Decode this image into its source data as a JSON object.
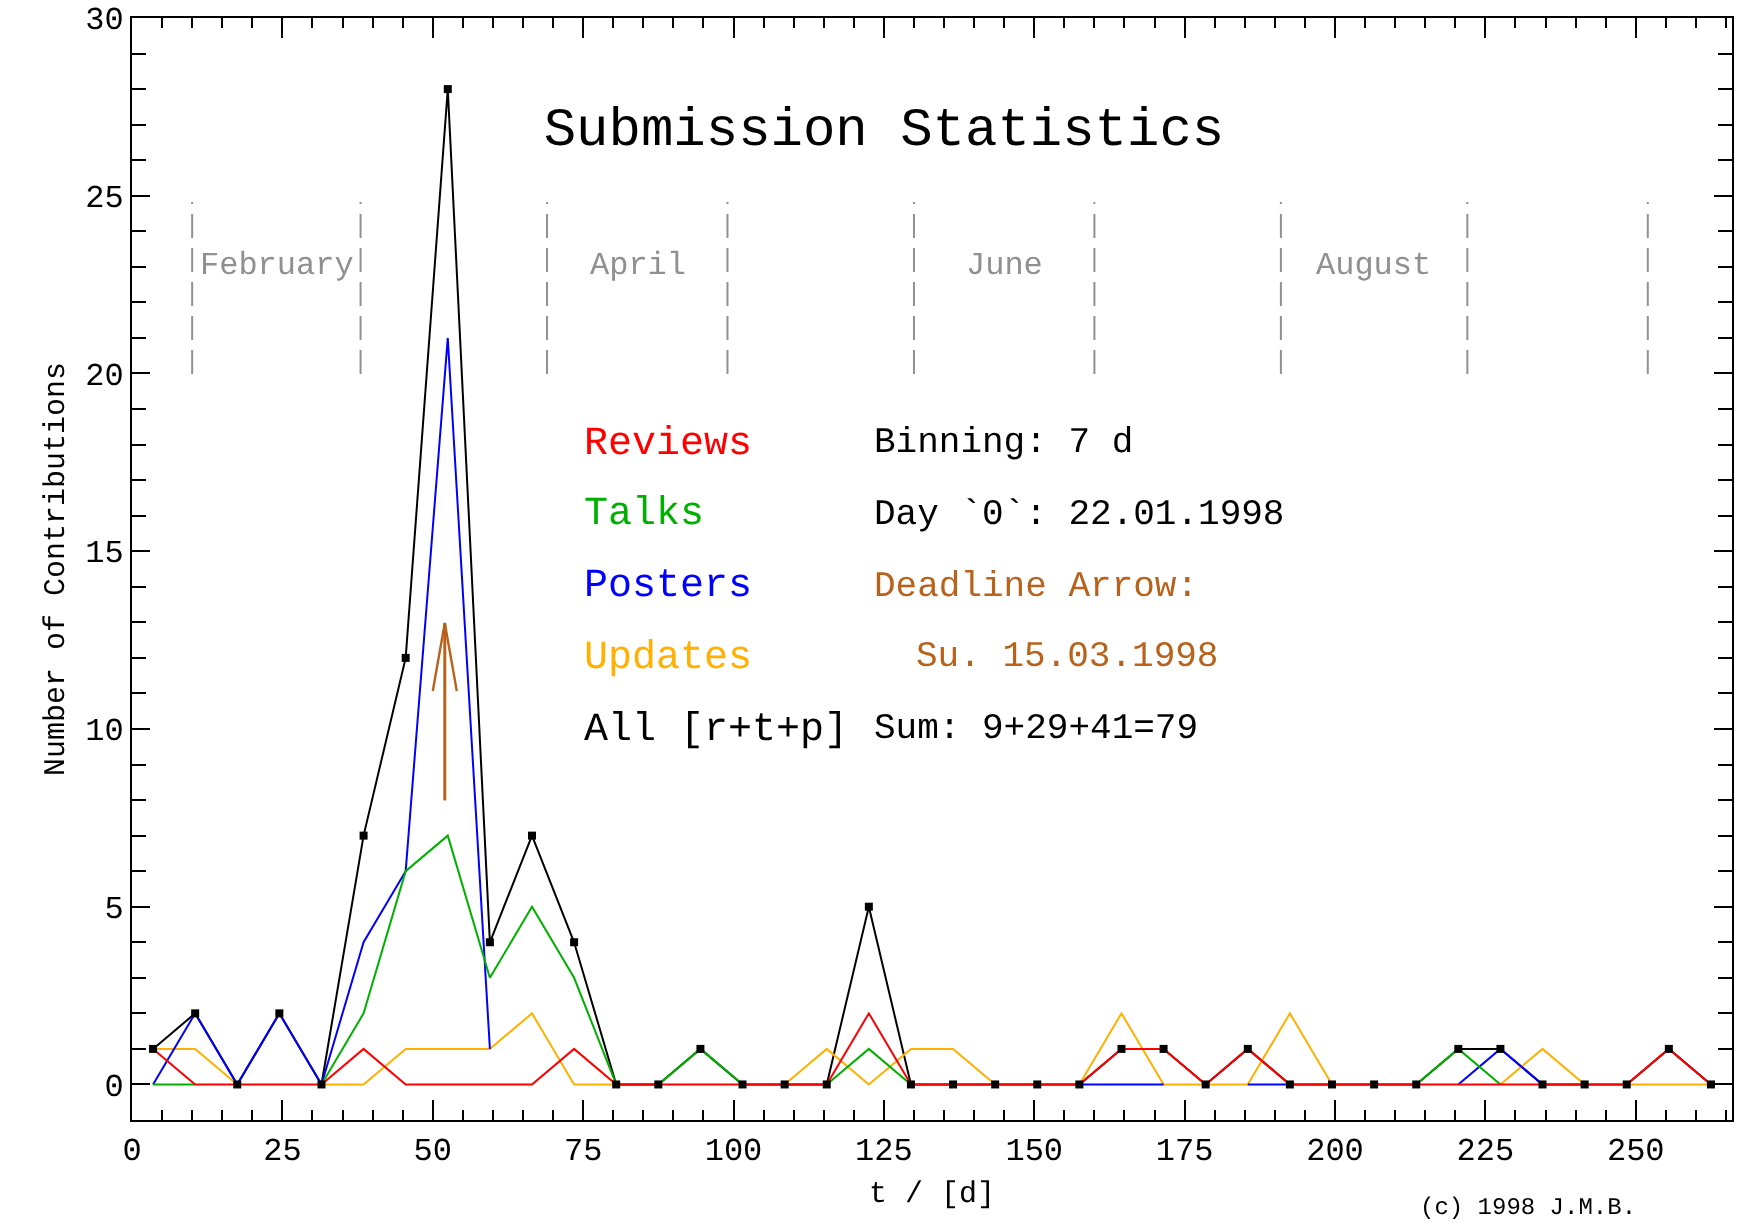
{
  "chart_data": {
    "type": "line",
    "title": "Submission Statistics",
    "xlabel": "t / [d]",
    "ylabel": "Number of Contributions",
    "x": [
      3.5,
      10.5,
      17.5,
      24.5,
      31.5,
      38.5,
      45.5,
      52.5,
      59.5,
      66.5,
      73.5,
      80.5,
      87.5,
      94.5,
      101.5,
      108.5,
      115.5,
      122.5,
      129.5,
      136.5,
      143.5,
      150.5,
      157.5,
      164.5,
      171.5,
      178.5,
      185.5,
      192.5,
      199.5,
      206.5,
      213.5,
      220.5,
      227.5,
      234.5,
      241.5,
      248.5,
      255.5,
      262.5
    ],
    "series": [
      {
        "name": "Reviews",
        "color": "#ff0000",
        "values": [
          1,
          0,
          0,
          0,
          0,
          1,
          0,
          0,
          0,
          0,
          1,
          0,
          0,
          0,
          0,
          0,
          0,
          2,
          0,
          0,
          0,
          0,
          0,
          1,
          1,
          0,
          1,
          0,
          0,
          0,
          0,
          0,
          0,
          0,
          0,
          0,
          1,
          0
        ]
      },
      {
        "name": "Talks",
        "color": "#00b000",
        "values": [
          0,
          0,
          null,
          null,
          0,
          2,
          6,
          7,
          3,
          5,
          3,
          0,
          0,
          1,
          0,
          null,
          0,
          1,
          0,
          null,
          null,
          null,
          null,
          null,
          null,
          null,
          null,
          null,
          null,
          null,
          0,
          1,
          0,
          null,
          null,
          null,
          null,
          null
        ]
      },
      {
        "name": "Posters",
        "color": "#0000ff",
        "values": [
          0,
          2,
          0,
          2,
          0,
          4,
          6,
          21,
          1,
          null,
          null,
          null,
          null,
          null,
          null,
          null,
          null,
          null,
          null,
          null,
          null,
          null,
          0,
          0,
          0,
          null,
          0,
          0,
          null,
          null,
          null,
          0,
          1,
          0,
          null,
          null,
          null,
          null
        ]
      },
      {
        "name": "Updates",
        "color": "#ffb000",
        "values": [
          1,
          1,
          0,
          null,
          0,
          0,
          1,
          1,
          1,
          2,
          0,
          0,
          null,
          null,
          null,
          0,
          1,
          0,
          1,
          1,
          0,
          null,
          0,
          2,
          0,
          0,
          0,
          2,
          0,
          null,
          null,
          null,
          0,
          1,
          0,
          0,
          0,
          0
        ]
      },
      {
        "name": "All [r+t+p]",
        "color": "#000000",
        "marker": "square",
        "values": [
          1,
          2,
          0,
          2,
          0,
          7,
          12,
          28,
          4,
          7,
          4,
          0,
          0,
          1,
          0,
          0,
          0,
          5,
          0,
          0,
          0,
          0,
          0,
          1,
          1,
          0,
          1,
          0,
          0,
          0,
          0,
          1,
          1,
          0,
          0,
          0,
          1,
          0
        ]
      }
    ],
    "xlim": [
      0,
      266
    ],
    "xticks": [
      0,
      {
        "value": 5,
        "label": null
      },
      {
        "value": 10,
        "label": null
      },
      {
        "value": 15,
        "label": null
      },
      {
        "value": 20,
        "label": null
      },
      25,
      {
        "value": 30,
        "label": null
      },
      {
        "value": 35,
        "label": null
      },
      {
        "value": 40,
        "label": null
      },
      {
        "value": 45,
        "label": null
      },
      50,
      {
        "value": 55,
        "label": null
      },
      {
        "value": 60,
        "label": null
      },
      {
        "value": 65,
        "label": null
      },
      {
        "value": 70,
        "label": null
      },
      75,
      {
        "value": 80,
        "label": null
      },
      {
        "value": 85,
        "label": null
      },
      {
        "value": 90,
        "label": null
      },
      {
        "value": 95,
        "label": null
      },
      100,
      {
        "value": 105,
        "label": null
      },
      {
        "value": 110,
        "label": null
      },
      {
        "value": 115,
        "label": null
      },
      {
        "value": 120,
        "label": null
      },
      125,
      {
        "value": 130,
        "label": null
      },
      {
        "value": 135,
        "label": null
      },
      {
        "value": 140,
        "label": null
      },
      {
        "value": 145,
        "label": null
      },
      150,
      {
        "value": 155,
        "label": null
      },
      {
        "value": 160,
        "label": null
      },
      {
        "value": 165,
        "label": null
      },
      {
        "value": 170,
        "label": null
      },
      175,
      {
        "value": 180,
        "label": null
      },
      {
        "value": 185,
        "label": null
      },
      {
        "value": 190,
        "label": null
      },
      {
        "value": 195,
        "label": null
      },
      200,
      {
        "value": 205,
        "label": null
      },
      {
        "value": 210,
        "label": null
      },
      {
        "value": 215,
        "label": null
      },
      {
        "value": 220,
        "label": null
      },
      225,
      {
        "value": 230,
        "label": null
      },
      {
        "value": 235,
        "label": null
      },
      {
        "value": 240,
        "label": null
      },
      {
        "value": 245,
        "label": null
      },
      250,
      {
        "value": 255,
        "label": null
      },
      {
        "value": 260,
        "label": null
      },
      {
        "value": 265,
        "label": null
      }
    ],
    "ylim": [
      -1,
      30
    ],
    "yticks": [
      0,
      {
        "value": 1,
        "label": null
      },
      {
        "value": 2,
        "label": null
      },
      {
        "value": 3,
        "label": null
      },
      {
        "value": 4,
        "label": null
      },
      5,
      {
        "value": 6,
        "label": null
      },
      {
        "value": 7,
        "label": null
      },
      {
        "value": 8,
        "label": null
      },
      {
        "value": 9,
        "label": null
      },
      10,
      {
        "value": 11,
        "label": null
      },
      {
        "value": 12,
        "label": null
      },
      {
        "value": 13,
        "label": null
      },
      {
        "value": 14,
        "label": null
      },
      15,
      {
        "value": 16,
        "label": null
      },
      {
        "value": 17,
        "label": null
      },
      {
        "value": 18,
        "label": null
      },
      {
        "value": 19,
        "label": null
      },
      20,
      {
        "value": 21,
        "label": null
      },
      {
        "value": 22,
        "label": null
      },
      {
        "value": 23,
        "label": null
      },
      {
        "value": 24,
        "label": null
      },
      25,
      {
        "value": 26,
        "label": null
      },
      {
        "value": 27,
        "label": null
      },
      {
        "value": 28,
        "label": null
      },
      {
        "value": 29,
        "label": null
      },
      30
    ],
    "legend": "center",
    "ref_lines": [
      {
        "axis": "x",
        "value": 10,
        "color": "#909090",
        "line_style": "dashed"
      },
      {
        "axis": "x",
        "value": 38,
        "color": "#909090",
        "line_style": "dashed"
      },
      {
        "axis": "x",
        "value": 69,
        "color": "#909090",
        "line_style": "dashed"
      },
      {
        "axis": "x",
        "value": 99,
        "color": "#909090",
        "line_style": "dashed"
      },
      {
        "axis": "x",
        "value": 130,
        "color": "#909090",
        "line_style": "dashed"
      },
      {
        "axis": "x",
        "value": 160,
        "color": "#909090",
        "line_style": "dashed"
      },
      {
        "axis": "x",
        "value": 191,
        "color": "#909090",
        "line_style": "dashed"
      },
      {
        "axis": "x",
        "value": 222,
        "color": "#909090",
        "line_style": "dashed"
      },
      {
        "axis": "x",
        "value": 252,
        "color": "#909090",
        "line_style": "dashed"
      },
      {
        "axis": "x",
        "value": 52,
        "label": "Deadline Arrow:\nSu. 15.03.1998",
        "color": "#b8621b",
        "line_style": "solid"
      }
    ],
    "annotations": [
      "February",
      "April",
      "June",
      "August",
      "Binning: 7 d",
      "Day `0`: 22.01.1998",
      "Sum: 9+29+41=79",
      "(c) 1998 J.M.B."
    ]
  }
}
